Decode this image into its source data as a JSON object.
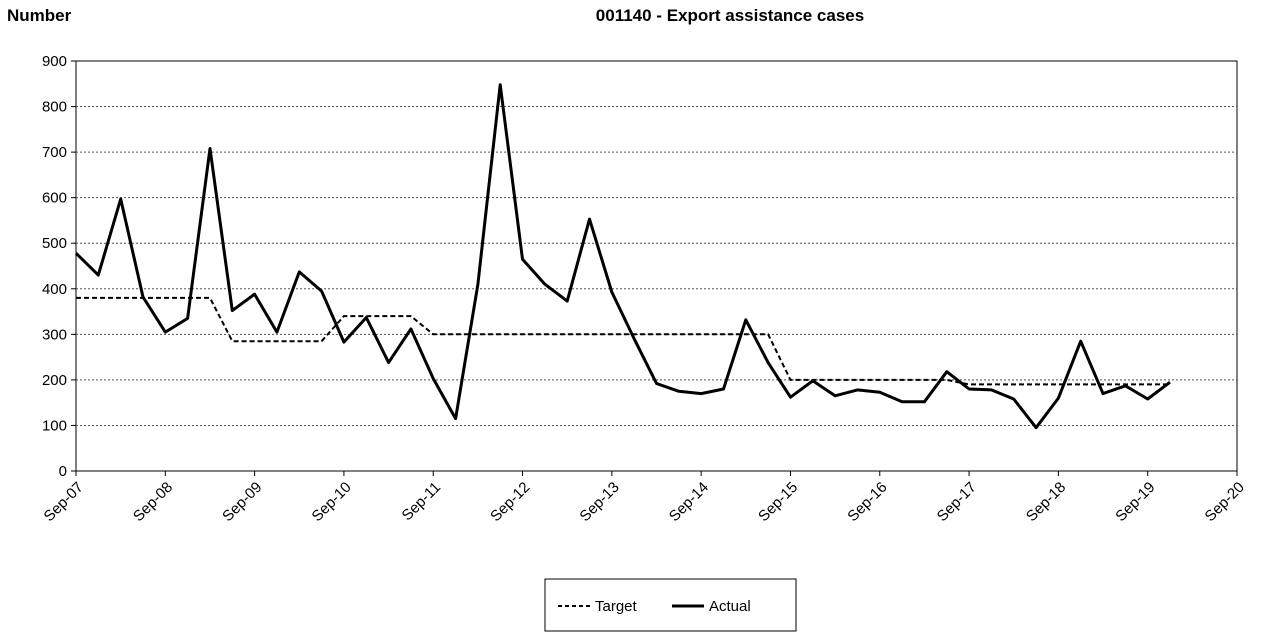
{
  "chart_data": {
    "type": "line",
    "title": "001140 - Export assistance cases",
    "ylabel": "Number",
    "xlabel": "",
    "ylim": [
      0,
      900
    ],
    "yticks": [
      0,
      100,
      200,
      300,
      400,
      500,
      600,
      700,
      800,
      900
    ],
    "xlim": [
      "2007-09",
      "2020-09"
    ],
    "xticks": [
      "Sep-07",
      "Sep-08",
      "Sep-09",
      "Sep-10",
      "Sep-11",
      "Sep-12",
      "Sep-13",
      "Sep-14",
      "Sep-15",
      "Sep-16",
      "Sep-17",
      "Sep-18",
      "Sep-19",
      "Sep-20"
    ],
    "grid": "horizontal dotted",
    "legend": "bottom-center",
    "series": [
      {
        "name": "Target",
        "style": "dashed",
        "color": "#000000",
        "points": [
          [
            "2007-09",
            380
          ],
          [
            "2009-03",
            380
          ],
          [
            "2009-06",
            285
          ],
          [
            "2010-06",
            285
          ],
          [
            "2010-09",
            340
          ],
          [
            "2011-06",
            340
          ],
          [
            "2011-09",
            300
          ],
          [
            "2014-06",
            300
          ],
          [
            "2014-09",
            300
          ],
          [
            "2015-06",
            300
          ],
          [
            "2015-09",
            200
          ],
          [
            "2017-06",
            200
          ],
          [
            "2017-09",
            190
          ],
          [
            "2019-12",
            190
          ]
        ]
      },
      {
        "name": "Actual",
        "style": "solid",
        "color": "#000000",
        "points": [
          [
            "2007-09",
            478
          ],
          [
            "2007-12",
            430
          ],
          [
            "2008-03",
            597
          ],
          [
            "2008-06",
            382
          ],
          [
            "2008-09",
            305
          ],
          [
            "2008-12",
            335
          ],
          [
            "2009-03",
            708
          ],
          [
            "2009-06",
            352
          ],
          [
            "2009-09",
            388
          ],
          [
            "2009-12",
            305
          ],
          [
            "2010-03",
            437
          ],
          [
            "2010-06",
            395
          ],
          [
            "2010-09",
            283
          ],
          [
            "2010-12",
            337
          ],
          [
            "2011-03",
            238
          ],
          [
            "2011-06",
            312
          ],
          [
            "2011-09",
            203
          ],
          [
            "2011-12",
            115
          ],
          [
            "2012-03",
            410
          ],
          [
            "2012-06",
            848
          ],
          [
            "2012-09",
            465
          ],
          [
            "2012-12",
            410
          ],
          [
            "2013-03",
            373
          ],
          [
            "2013-06",
            553
          ],
          [
            "2013-09",
            393
          ],
          [
            "2013-12",
            290
          ],
          [
            "2014-03",
            192
          ],
          [
            "2014-06",
            175
          ],
          [
            "2014-09",
            170
          ],
          [
            "2014-12",
            180
          ],
          [
            "2015-03",
            332
          ],
          [
            "2015-06",
            238
          ],
          [
            "2015-09",
            162
          ],
          [
            "2015-12",
            198
          ],
          [
            "2016-03",
            165
          ],
          [
            "2016-06",
            178
          ],
          [
            "2016-09",
            173
          ],
          [
            "2016-12",
            152
          ],
          [
            "2017-03",
            152
          ],
          [
            "2017-06",
            218
          ],
          [
            "2017-09",
            180
          ],
          [
            "2017-12",
            178
          ],
          [
            "2018-03",
            158
          ],
          [
            "2018-06",
            95
          ],
          [
            "2018-09",
            160
          ],
          [
            "2018-12",
            285
          ],
          [
            "2019-03",
            170
          ],
          [
            "2019-06",
            187
          ],
          [
            "2019-09",
            158
          ],
          [
            "2019-12",
            195
          ]
        ]
      }
    ]
  }
}
